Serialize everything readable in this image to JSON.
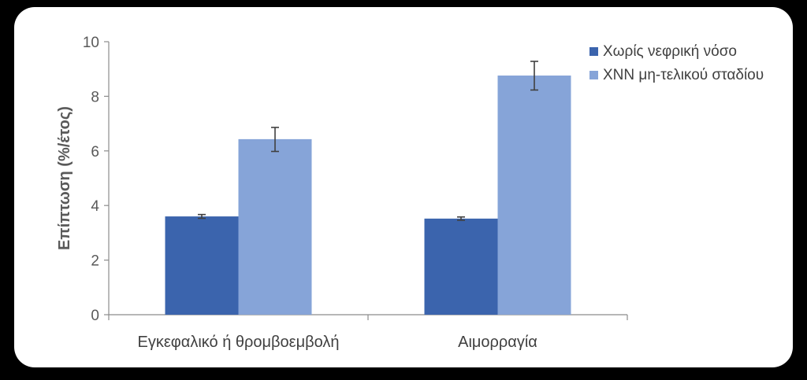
{
  "chart_data": {
    "type": "bar",
    "title": "",
    "xlabel": "",
    "ylabel": "Επίπτωση (%/έτος)",
    "ylim": [
      0,
      10
    ],
    "yticks": [
      0,
      2,
      4,
      6,
      8,
      10
    ],
    "categories": [
      "Εγκεφαλικό ή θρομβοεμβολή",
      "Αιμορραγία"
    ],
    "series": [
      {
        "name": "Χωρίς νεφρική νόσο",
        "color": "#3b64ad",
        "values": [
          3.6,
          3.52
        ],
        "err_low": [
          3.53,
          3.46
        ],
        "err_high": [
          3.67,
          3.58
        ]
      },
      {
        "name": "ΧΝΝ μη-τελικού σταδίου",
        "color": "#86a4d8",
        "values": [
          6.43,
          8.76
        ],
        "err_low": [
          5.98,
          8.23
        ],
        "err_high": [
          6.86,
          9.28
        ]
      }
    ],
    "grid": false,
    "legend": "top-right"
  }
}
